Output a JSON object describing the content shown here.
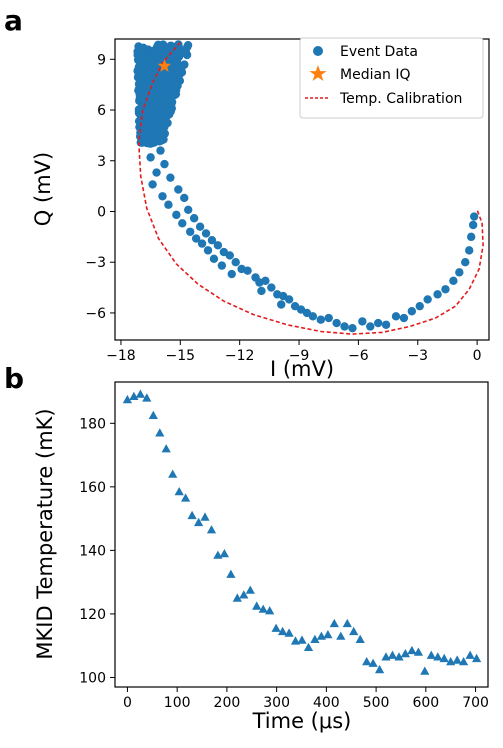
{
  "chart_data": [
    {
      "panel": "a",
      "type": "scatter",
      "xlabel": "I (mV)",
      "ylabel": "Q (mV)",
      "xlim": [
        -18.3,
        0.6
      ],
      "ylim": [
        -7.6,
        10.2
      ],
      "xticks": [
        -18,
        -15,
        -12,
        -9,
        -6,
        -3,
        0
      ],
      "yticks": [
        -6,
        -3,
        0,
        3,
        6,
        9
      ],
      "xtick_labels": [
        "−18",
        "−15",
        "−12",
        "−9",
        "−6",
        "−3",
        "0"
      ],
      "ytick_labels": [
        "−6",
        "−3",
        "0",
        "3",
        "6",
        "9"
      ],
      "legend_position": "top-right",
      "legend": [
        "Event Data",
        "Median IQ",
        "Temp. Calibration"
      ],
      "colors": {
        "event": "#1f77b4",
        "median": "#ff7f0e",
        "calibration": "#e41a1c"
      },
      "series": [
        {
          "name": "Event Data",
          "kind": "scatter",
          "cloud": {
            "x_range": [
              -17.2,
              -14.5
            ],
            "y_range": [
              4.0,
              9.9
            ]
          },
          "points": [
            [
              -16.0,
              3.6
            ],
            [
              -16.5,
              3.2
            ],
            [
              -15.8,
              2.8
            ],
            [
              -16.2,
              2.3
            ],
            [
              -15.5,
              2.0
            ],
            [
              -16.4,
              1.6
            ],
            [
              -15.1,
              1.3
            ],
            [
              -15.9,
              0.9
            ],
            [
              -14.8,
              0.8
            ],
            [
              -15.6,
              0.4
            ],
            [
              -14.6,
              0.1
            ],
            [
              -15.2,
              -0.2
            ],
            [
              -14.3,
              -0.4
            ],
            [
              -14.9,
              -0.7
            ],
            [
              -14.0,
              -0.9
            ],
            [
              -14.5,
              -1.2
            ],
            [
              -13.7,
              -1.3
            ],
            [
              -14.2,
              -1.6
            ],
            [
              -13.4,
              -1.7
            ],
            [
              -13.9,
              -1.9
            ],
            [
              -13.1,
              -2.0
            ],
            [
              -13.6,
              -2.3
            ],
            [
              -12.8,
              -2.4
            ],
            [
              -12.5,
              -2.6
            ],
            [
              -13.3,
              -2.8
            ],
            [
              -12.2,
              -3.0
            ],
            [
              -12.9,
              -3.2
            ],
            [
              -11.9,
              -3.4
            ],
            [
              -11.6,
              -3.5
            ],
            [
              -12.4,
              -3.7
            ],
            [
              -11.2,
              -3.9
            ],
            [
              -11.0,
              -4.2
            ],
            [
              -10.7,
              -4.1
            ],
            [
              -10.4,
              -4.5
            ],
            [
              -10.9,
              -4.7
            ],
            [
              -10.1,
              -4.9
            ],
            [
              -9.8,
              -5.0
            ],
            [
              -9.5,
              -5.2
            ],
            [
              -9.9,
              -5.5
            ],
            [
              -9.2,
              -5.6
            ],
            [
              -8.9,
              -5.8
            ],
            [
              -8.6,
              -6.0
            ],
            [
              -8.3,
              -6.2
            ],
            [
              -7.9,
              -6.4
            ],
            [
              -7.5,
              -6.3
            ],
            [
              -7.1,
              -6.6
            ],
            [
              -6.7,
              -6.8
            ],
            [
              -6.3,
              -6.9
            ],
            [
              -5.8,
              -6.5
            ],
            [
              -5.4,
              -6.8
            ],
            [
              -5.0,
              -6.6
            ],
            [
              -4.6,
              -6.7
            ],
            [
              -4.1,
              -6.2
            ],
            [
              -3.7,
              -6.3
            ],
            [
              -3.3,
              -5.9
            ],
            [
              -2.9,
              -5.6
            ],
            [
              -2.5,
              -5.2
            ],
            [
              -2.0,
              -4.9
            ],
            [
              -1.6,
              -4.6
            ],
            [
              -1.2,
              -4.1
            ],
            [
              -0.9,
              -3.6
            ],
            [
              -0.6,
              -3.0
            ],
            [
              -0.4,
              -2.3
            ],
            [
              -0.3,
              -1.5
            ],
            [
              -0.2,
              -0.8
            ],
            [
              -0.15,
              -0.3
            ]
          ]
        },
        {
          "name": "Median IQ",
          "kind": "marker",
          "x": -15.8,
          "y": 8.6
        },
        {
          "name": "Temp. Calibration",
          "kind": "line",
          "x": [
            -15.0,
            -15.3,
            -15.9,
            -16.4,
            -16.9,
            -17.1,
            -17.0,
            -16.7,
            -16.1,
            -15.2,
            -14.1,
            -12.8,
            -11.3,
            -9.6,
            -7.9,
            -6.3,
            -4.8,
            -3.4,
            -2.1,
            -1.1,
            -0.4,
            0.1,
            0.3,
            0.25,
            0.0
          ],
          "y": [
            10.0,
            9.6,
            8.8,
            7.6,
            6.0,
            4.1,
            2.1,
            0.2,
            -1.6,
            -3.1,
            -4.3,
            -5.3,
            -6.1,
            -6.7,
            -7.1,
            -7.25,
            -7.15,
            -6.8,
            -6.3,
            -5.6,
            -4.6,
            -3.4,
            -2.0,
            -0.7,
            0.1
          ]
        }
      ]
    },
    {
      "panel": "b",
      "type": "scatter",
      "xlabel": "Time (μs)",
      "ylabel": "MKID Temperature (mK)",
      "xlim": [
        -25,
        725
      ],
      "ylim": [
        97,
        193
      ],
      "xticks": [
        0,
        100,
        200,
        300,
        400,
        500,
        600,
        700
      ],
      "yticks": [
        100,
        120,
        140,
        160,
        180
      ],
      "color": "#1f77b4",
      "marker": "triangle",
      "x": [
        0,
        13,
        26,
        39,
        52,
        65,
        78,
        91,
        104,
        117,
        130,
        143,
        156,
        169,
        182,
        195,
        208,
        221,
        234,
        247,
        260,
        273,
        286,
        299,
        312,
        325,
        338,
        351,
        364,
        377,
        390,
        403,
        416,
        429,
        442,
        455,
        468,
        481,
        494,
        507,
        520,
        533,
        546,
        559,
        572,
        585,
        598,
        611,
        624,
        637,
        650,
        663,
        676,
        689,
        702
      ],
      "y": [
        187.5,
        188.5,
        189.2,
        188.0,
        182.5,
        177.0,
        172.0,
        164.0,
        158.5,
        156.5,
        151.0,
        148.8,
        150.5,
        146.5,
        138.5,
        139.0,
        132.5,
        125.0,
        126.0,
        127.5,
        122.5,
        121.5,
        121.0,
        115.5,
        114.5,
        114.0,
        111.5,
        111.8,
        109.5,
        112.0,
        113.0,
        113.5,
        117.0,
        113.0,
        117.0,
        114.5,
        112.0,
        105.0,
        104.5,
        102.5,
        106.5,
        107.0,
        106.5,
        107.5,
        108.5,
        108.0,
        102.0,
        107.0,
        106.5,
        106.0,
        105.0,
        105.5,
        105.0,
        107.0,
        106.0
      ]
    }
  ]
}
